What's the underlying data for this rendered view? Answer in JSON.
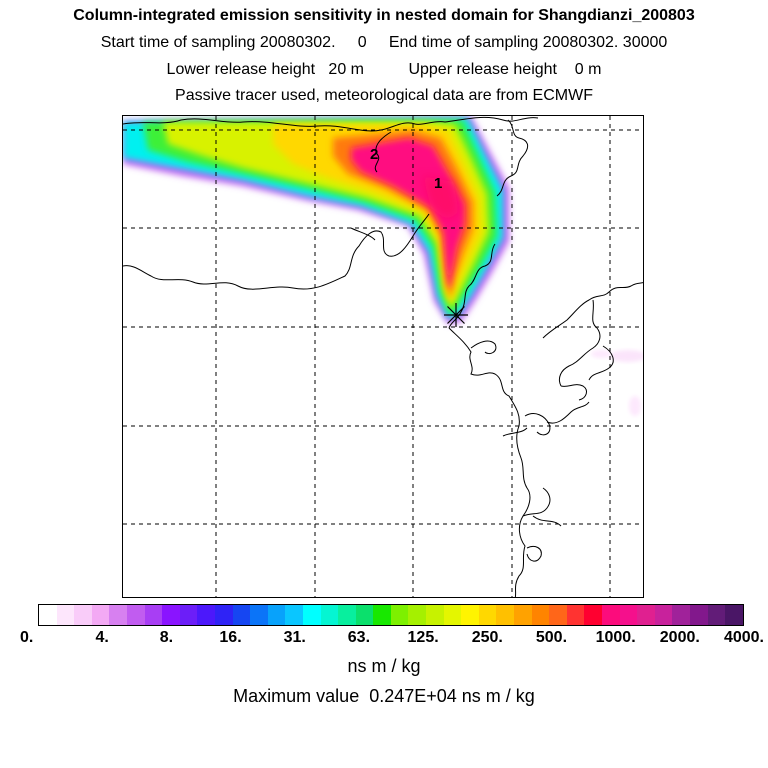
{
  "header": {
    "title": "Column-integrated emission sensitivity in nested domain for Shangdianzi_200803",
    "line2": "Start time of sampling 20080302.     0     End time of sampling 20080302. 30000",
    "line3": "Lower release height   20 m          Upper release height    0 m",
    "line4": "Passive tracer used, meteorological data are from ECMWF"
  },
  "map": {
    "labels": [
      "2",
      "1"
    ],
    "receptor_marker": "asterisk-icon"
  },
  "colorbar": {
    "colors": [
      "#ffffff",
      "#fde6fc",
      "#f9ccf9",
      "#f3a9f4",
      "#d780f0",
      "#c15cf0",
      "#a83ef4",
      "#8a14ff",
      "#6c1ef8",
      "#4c18fb",
      "#2f23f6",
      "#1646f2",
      "#0b74f8",
      "#08a2fb",
      "#0ac6ff",
      "#00ffff",
      "#05f5d2",
      "#08ef9e",
      "#0be06c",
      "#18e800",
      "#7df000",
      "#a5f000",
      "#c7f200",
      "#e4f600",
      "#fff400",
      "#ffd800",
      "#ffc000",
      "#ffa200",
      "#ff8400",
      "#ff6619",
      "#ff3331",
      "#ff0030",
      "#fc0c7c",
      "#f5108c",
      "#e02090",
      "#c8229c",
      "#a0229a",
      "#82188c",
      "#621c78",
      "#4a1666"
    ],
    "tick_labels": [
      "0.",
      "4.",
      "8.",
      "16.",
      "31.",
      "63.",
      "125.",
      "250.",
      "500.",
      "1000.",
      "2000.",
      "4000."
    ],
    "units": "ns m / kg"
  },
  "footer": {
    "max_value": "Maximum value  0.247E+04 ns m / kg"
  }
}
